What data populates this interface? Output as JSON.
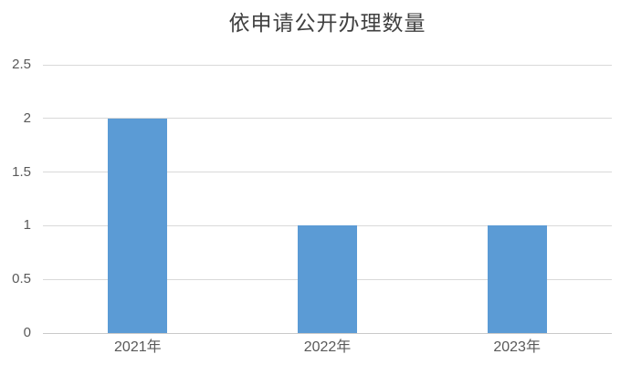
{
  "chart_data": {
    "type": "bar",
    "title": "依申请公开办理数量",
    "categories": [
      "2021年",
      "2022年",
      "2023年"
    ],
    "values": [
      2,
      1,
      1
    ],
    "xlabel": "",
    "ylabel": "",
    "ylim": [
      0,
      2.5
    ],
    "yticks": [
      0,
      0.5,
      1,
      1.5,
      2,
      2.5
    ],
    "ytick_labels": [
      "0",
      "0.5",
      "1",
      "1.5",
      "2",
      "2.5"
    ],
    "grid": true,
    "legend": false,
    "colors": {
      "bar": "#5B9BD5",
      "gridline": "#D9D9D9",
      "axis_line": "#C9C9C9",
      "tick_label": "#595959",
      "title": "#404040",
      "background": "#FFFFFF"
    }
  }
}
